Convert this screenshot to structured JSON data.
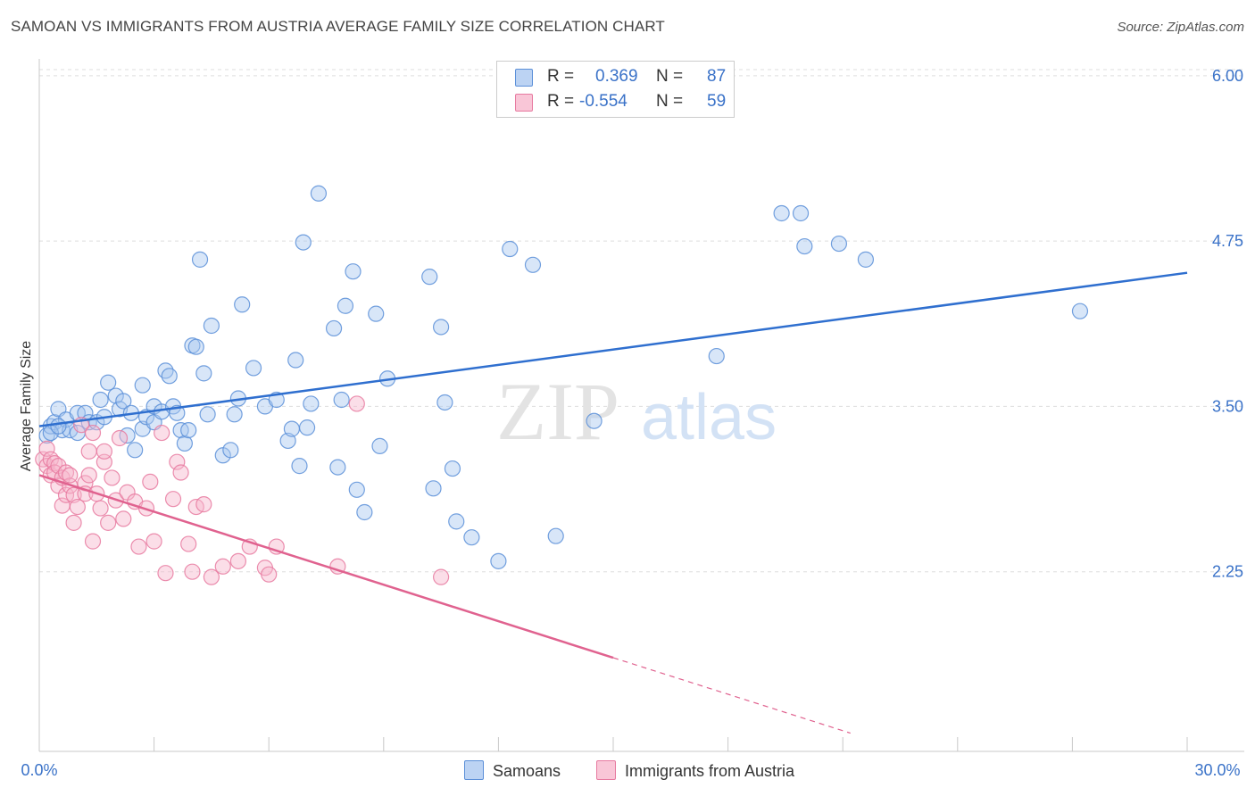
{
  "title": "SAMOAN VS IMMIGRANTS FROM AUSTRIA AVERAGE FAMILY SIZE CORRELATION CHART",
  "source": "Source: ZipAtlas.com",
  "watermark": {
    "zip": "ZIP",
    "atlas": "atlas"
  },
  "colors": {
    "blue_fill": "#a9c7f0",
    "blue_stroke": "#5b8fd8",
    "blue_line": "#2f6fcf",
    "pink_fill": "#f7b6cc",
    "pink_stroke": "#e77aa0",
    "pink_line": "#e0628f",
    "tick_label": "#3a72c8",
    "grid": "#dddddd"
  },
  "legend": {
    "rows": [
      {
        "series": "Samoans",
        "r_label": "R =",
        "r_value": "0.369",
        "n_label": "N =",
        "n_value": "87"
      },
      {
        "series": "Immigrants from Austria",
        "r_label": "R =",
        "r_value": "-0.554",
        "n_label": "N =",
        "n_value": "59"
      }
    ]
  },
  "chart_data": {
    "type": "scatter",
    "title": "SAMOAN VS IMMIGRANTS FROM AUSTRIA AVERAGE FAMILY SIZE CORRELATION CHART",
    "xlabel": "",
    "ylabel": "Average Family Size",
    "xlim": [
      0,
      30
    ],
    "ylim": [
      1.0,
      6.1
    ],
    "x_tick_labels": [
      "0.0%",
      "30.0%"
    ],
    "y_ticks": [
      2.25,
      3.5,
      4.75,
      6.0
    ],
    "y_tick_labels": [
      "2.25",
      "3.50",
      "4.75",
      "6.00"
    ],
    "grid": true,
    "legend_position": "top-center",
    "series": [
      {
        "name": "Samoans",
        "color": "#5b8fd8",
        "trend": {
          "x": [
            0,
            30
          ],
          "y": [
            3.35,
            4.51
          ],
          "dashed_from": null
        },
        "points": [
          [
            0.2,
            3.28
          ],
          [
            0.3,
            3.35
          ],
          [
            0.4,
            3.38
          ],
          [
            0.5,
            3.48
          ],
          [
            0.6,
            3.32
          ],
          [
            0.7,
            3.4
          ],
          [
            0.8,
            3.32
          ],
          [
            1.0,
            3.3
          ],
          [
            1.0,
            3.45
          ],
          [
            1.2,
            3.45
          ],
          [
            1.3,
            3.38
          ],
          [
            1.5,
            3.38
          ],
          [
            1.6,
            3.55
          ],
          [
            1.7,
            3.42
          ],
          [
            1.8,
            3.68
          ],
          [
            2.0,
            3.58
          ],
          [
            2.1,
            3.48
          ],
          [
            2.2,
            3.54
          ],
          [
            2.3,
            3.28
          ],
          [
            2.4,
            3.45
          ],
          [
            2.5,
            3.17
          ],
          [
            2.7,
            3.33
          ],
          [
            2.7,
            3.66
          ],
          [
            2.8,
            3.42
          ],
          [
            3.0,
            3.5
          ],
          [
            3.0,
            3.38
          ],
          [
            3.2,
            3.46
          ],
          [
            3.3,
            3.77
          ],
          [
            3.4,
            3.73
          ],
          [
            3.5,
            3.5
          ],
          [
            3.6,
            3.45
          ],
          [
            3.7,
            3.32
          ],
          [
            3.8,
            3.22
          ],
          [
            3.9,
            3.32
          ],
          [
            4.0,
            3.96
          ],
          [
            4.1,
            3.95
          ],
          [
            4.2,
            4.61
          ],
          [
            4.3,
            3.75
          ],
          [
            4.4,
            3.44
          ],
          [
            4.5,
            4.11
          ],
          [
            4.8,
            3.13
          ],
          [
            5.0,
            3.17
          ],
          [
            5.1,
            3.44
          ],
          [
            5.2,
            3.56
          ],
          [
            5.3,
            4.27
          ],
          [
            5.6,
            3.79
          ],
          [
            5.9,
            3.5
          ],
          [
            6.2,
            3.55
          ],
          [
            6.5,
            3.24
          ],
          [
            6.6,
            3.33
          ],
          [
            6.7,
            3.85
          ],
          [
            6.8,
            3.05
          ],
          [
            6.9,
            4.74
          ],
          [
            7.0,
            3.34
          ],
          [
            7.1,
            3.52
          ],
          [
            7.3,
            5.11
          ],
          [
            7.7,
            4.09
          ],
          [
            7.8,
            3.04
          ],
          [
            7.9,
            3.55
          ],
          [
            8.0,
            4.26
          ],
          [
            8.2,
            4.52
          ],
          [
            8.3,
            2.87
          ],
          [
            8.5,
            2.7
          ],
          [
            8.8,
            4.2
          ],
          [
            8.9,
            3.2
          ],
          [
            9.1,
            3.71
          ],
          [
            10.2,
            4.48
          ],
          [
            10.3,
            2.88
          ],
          [
            10.5,
            4.1
          ],
          [
            10.6,
            3.53
          ],
          [
            10.8,
            3.03
          ],
          [
            10.9,
            2.63
          ],
          [
            11.3,
            2.51
          ],
          [
            12.0,
            2.33
          ],
          [
            12.3,
            4.69
          ],
          [
            12.9,
            4.57
          ],
          [
            13.5,
            2.52
          ],
          [
            14.5,
            3.39
          ],
          [
            17.7,
            3.88
          ],
          [
            19.4,
            4.96
          ],
          [
            19.9,
            4.96
          ],
          [
            20.0,
            4.71
          ],
          [
            20.9,
            4.73
          ],
          [
            21.6,
            4.61
          ],
          [
            27.2,
            4.22
          ],
          [
            0.3,
            3.3
          ],
          [
            0.5,
            3.35
          ]
        ]
      },
      {
        "name": "Immigrants from Austria",
        "color": "#e77aa0",
        "trend": {
          "x": [
            0,
            15
          ],
          "y": [
            2.98,
            1.6
          ],
          "dashed_to": {
            "x": 21.2,
            "y": 1.03
          }
        },
        "points": [
          [
            0.1,
            3.1
          ],
          [
            0.2,
            3.05
          ],
          [
            0.2,
            3.18
          ],
          [
            0.3,
            2.98
          ],
          [
            0.3,
            3.1
          ],
          [
            0.4,
            3.07
          ],
          [
            0.4,
            3.0
          ],
          [
            0.5,
            3.05
          ],
          [
            0.5,
            2.9
          ],
          [
            0.6,
            2.96
          ],
          [
            0.6,
            2.75
          ],
          [
            0.7,
            3.0
          ],
          [
            0.7,
            2.83
          ],
          [
            0.8,
            2.9
          ],
          [
            0.8,
            2.98
          ],
          [
            0.9,
            2.83
          ],
          [
            0.9,
            2.62
          ],
          [
            1.0,
            2.74
          ],
          [
            1.1,
            3.36
          ],
          [
            1.2,
            2.92
          ],
          [
            1.2,
            2.84
          ],
          [
            1.3,
            3.16
          ],
          [
            1.3,
            2.98
          ],
          [
            1.4,
            3.3
          ],
          [
            1.4,
            2.48
          ],
          [
            1.5,
            2.84
          ],
          [
            1.6,
            2.73
          ],
          [
            1.7,
            3.08
          ],
          [
            1.7,
            3.16
          ],
          [
            1.8,
            2.62
          ],
          [
            1.9,
            2.96
          ],
          [
            2.0,
            2.79
          ],
          [
            2.1,
            3.26
          ],
          [
            2.2,
            2.65
          ],
          [
            2.3,
            2.85
          ],
          [
            2.5,
            2.78
          ],
          [
            2.6,
            2.44
          ],
          [
            2.8,
            2.73
          ],
          [
            2.9,
            2.93
          ],
          [
            3.0,
            2.48
          ],
          [
            3.2,
            3.3
          ],
          [
            3.3,
            2.24
          ],
          [
            3.5,
            2.8
          ],
          [
            3.6,
            3.08
          ],
          [
            3.7,
            3.0
          ],
          [
            3.9,
            2.46
          ],
          [
            4.0,
            2.25
          ],
          [
            4.1,
            2.74
          ],
          [
            4.3,
            2.76
          ],
          [
            4.5,
            2.21
          ],
          [
            4.8,
            2.29
          ],
          [
            5.2,
            2.33
          ],
          [
            5.5,
            2.44
          ],
          [
            5.9,
            2.28
          ],
          [
            6.0,
            2.23
          ],
          [
            6.2,
            2.44
          ],
          [
            7.8,
            2.29
          ],
          [
            8.3,
            3.52
          ],
          [
            10.5,
            2.21
          ]
        ]
      }
    ]
  }
}
